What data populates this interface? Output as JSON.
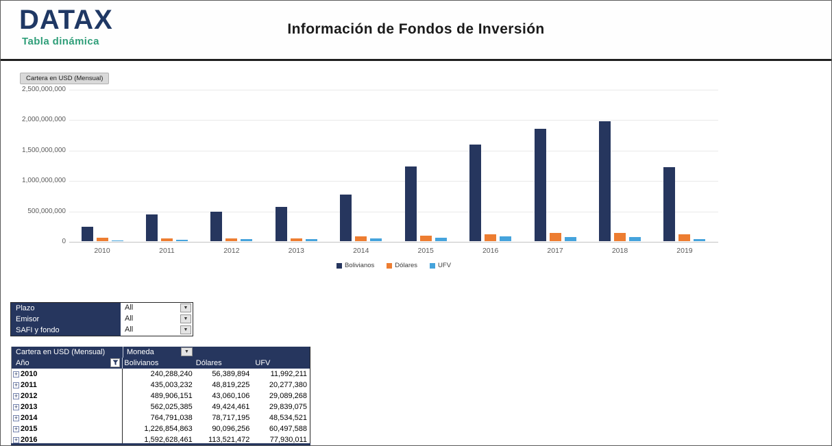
{
  "header": {
    "logo_text": "DATAX",
    "logo_subtitle": "Tabla dinámica",
    "title": "Información de Fondos de Inversión"
  },
  "chart": {
    "field_button_label": "Cartera en USD (Mensual)"
  },
  "chart_data": {
    "type": "bar",
    "title": "Cartera en USD (Mensual)",
    "categories": [
      "2010",
      "2011",
      "2012",
      "2013",
      "2014",
      "2015",
      "2016",
      "2017",
      "2018",
      "2019"
    ],
    "series": [
      {
        "name": "Bolivianos",
        "color": "#26365e",
        "values": [
          240288240,
          435003232,
          489906151,
          562025385,
          764791038,
          1226854863,
          1592628461,
          1850000000,
          1975000000,
          1215000000
        ]
      },
      {
        "name": "Dólares",
        "color": "#ed7d31",
        "values": [
          56389894,
          48819225,
          43060106,
          49424461,
          78717195,
          90096256,
          113521472,
          140000000,
          133000000,
          115000000
        ]
      },
      {
        "name": "UFV",
        "color": "#45a3dc",
        "values": [
          11992211,
          20277380,
          29089268,
          29839075,
          48534521,
          60497588,
          77930011,
          70000000,
          65000000,
          32000000
        ]
      }
    ],
    "ylim": [
      0,
      2500000000
    ],
    "ytick_labels": [
      "0",
      "500,000,000",
      "1,000,000,000",
      "1,500,000,000",
      "2,000,000,000",
      "2,500,000,000"
    ],
    "grid": true,
    "legend_position": "bottom"
  },
  "filters": [
    {
      "label": "Plazo",
      "value": "All"
    },
    {
      "label": "Emisor",
      "value": "All"
    },
    {
      "label": "SAFI y fondo",
      "value": "All"
    }
  ],
  "pivot_table": {
    "corner_label": "Cartera en USD (Mensual)",
    "column_field": "Moneda",
    "row_field": "Año",
    "columns": [
      "Bolivianos",
      "Dólares",
      "UFV"
    ],
    "rows": [
      {
        "year": "2010",
        "values": [
          "240,288,240",
          "56,389,894",
          "11,992,211"
        ]
      },
      {
        "year": "2011",
        "values": [
          "435,003,232",
          "48,819,225",
          "20,277,380"
        ]
      },
      {
        "year": "2012",
        "values": [
          "489,906,151",
          "43,060,106",
          "29,089,268"
        ]
      },
      {
        "year": "2013",
        "values": [
          "562,025,385",
          "49,424,461",
          "29,839,075"
        ]
      },
      {
        "year": "2014",
        "values": [
          "764,791,038",
          "78,717,195",
          "48,534,521"
        ]
      },
      {
        "year": "2015",
        "values": [
          "1,226,854,863",
          "90,096,256",
          "60,497,588"
        ]
      },
      {
        "year": "2016",
        "values": [
          "1,592,628,461",
          "113,521,472",
          "77,930,011"
        ]
      }
    ]
  },
  "icons": {
    "dropdown_arrow": "▼",
    "expand_plus": "+"
  },
  "colors": {
    "navy": "#26365e",
    "logo_navy": "#1f3864",
    "teal": "#2f9e79",
    "orange": "#ed7d31",
    "light_blue": "#45a3dc"
  }
}
